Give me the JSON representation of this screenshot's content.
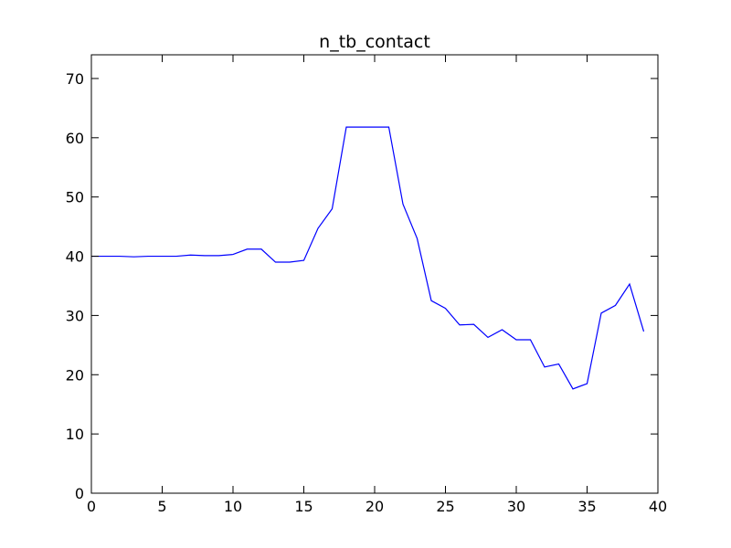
{
  "chart_data": {
    "type": "line",
    "title": "n_tb_contact",
    "xlabel": "",
    "ylabel": "",
    "xlim": [
      0,
      40
    ],
    "ylim": [
      0,
      74
    ],
    "xticks": [
      0,
      5,
      10,
      15,
      20,
      25,
      30,
      35,
      40
    ],
    "yticks": [
      0,
      10,
      20,
      30,
      40,
      50,
      60,
      70
    ],
    "grid": false,
    "legend": "none",
    "series": [
      {
        "color": "#0000ff",
        "x": [
          0,
          1,
          2,
          3,
          4,
          5,
          6,
          7,
          8,
          9,
          10,
          11,
          12,
          13,
          14,
          15,
          16,
          17,
          18,
          19,
          20,
          21,
          22,
          23,
          24,
          25,
          26,
          27,
          28,
          29,
          30,
          31,
          32,
          33,
          34,
          35,
          36,
          37,
          38,
          39
        ],
        "y": [
          40.0,
          40.0,
          40.0,
          39.9,
          40.0,
          40.0,
          40.0,
          40.2,
          40.1,
          40.1,
          40.3,
          41.2,
          41.2,
          39.0,
          39.0,
          39.3,
          44.7,
          48.0,
          61.8,
          61.8,
          61.8,
          61.8,
          48.8,
          43.0,
          32.5,
          31.2,
          28.4,
          28.5,
          26.3,
          27.6,
          25.9,
          25.9,
          21.3,
          21.8,
          17.6,
          18.5,
          30.4,
          31.7,
          35.3,
          27.3
        ]
      }
    ]
  }
}
